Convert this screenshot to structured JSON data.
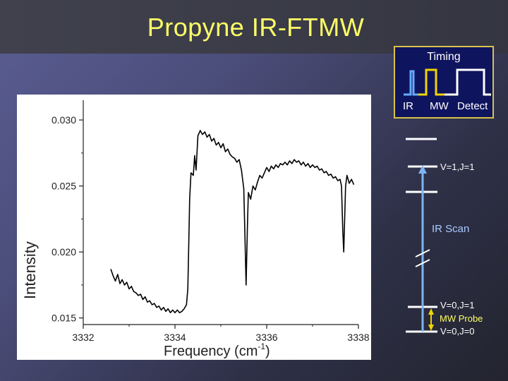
{
  "slide": {
    "title": "Propyne IR-FTMW"
  },
  "chart_data": {
    "type": "line",
    "title": "",
    "xlabel": "Frequency (cm-1)",
    "ylabel": "Intensity",
    "xlim": [
      3332,
      3338
    ],
    "ylim": [
      0.0145,
      0.0315
    ],
    "x_ticks": [
      "3332",
      "3334",
      "3336",
      "3338"
    ],
    "y_ticks": [
      "0.015",
      "0.020",
      "0.025",
      "0.030"
    ],
    "grid": false,
    "series": [
      {
        "color": "#000000",
        "points": [
          [
            3332.6,
            0.0187
          ],
          [
            3332.65,
            0.0182
          ],
          [
            3332.7,
            0.0178
          ],
          [
            3332.75,
            0.0183
          ],
          [
            3332.8,
            0.0176
          ],
          [
            3332.85,
            0.0179
          ],
          [
            3332.9,
            0.0175
          ],
          [
            3332.95,
            0.0177
          ],
          [
            3333.0,
            0.0172
          ],
          [
            3333.05,
            0.0174
          ],
          [
            3333.1,
            0.017
          ],
          [
            3333.15,
            0.0169
          ],
          [
            3333.2,
            0.0167
          ],
          [
            3333.25,
            0.0168
          ],
          [
            3333.3,
            0.0164
          ],
          [
            3333.35,
            0.0166
          ],
          [
            3333.4,
            0.0162
          ],
          [
            3333.45,
            0.0163
          ],
          [
            3333.5,
            0.016
          ],
          [
            3333.55,
            0.0161
          ],
          [
            3333.6,
            0.0158
          ],
          [
            3333.65,
            0.0159
          ],
          [
            3333.7,
            0.0156
          ],
          [
            3333.75,
            0.0158
          ],
          [
            3333.8,
            0.0155
          ],
          [
            3333.85,
            0.0157
          ],
          [
            3333.9,
            0.0154
          ],
          [
            3333.95,
            0.0156
          ],
          [
            3334.0,
            0.0154
          ],
          [
            3334.05,
            0.0156
          ],
          [
            3334.1,
            0.0154
          ],
          [
            3334.15,
            0.0155
          ],
          [
            3334.2,
            0.0157
          ],
          [
            3334.25,
            0.016
          ],
          [
            3334.28,
            0.0172
          ],
          [
            3334.3,
            0.0205
          ],
          [
            3334.32,
            0.024
          ],
          [
            3334.35,
            0.026
          ],
          [
            3334.4,
            0.0258
          ],
          [
            3334.43,
            0.0273
          ],
          [
            3334.46,
            0.0262
          ],
          [
            3334.5,
            0.0288
          ],
          [
            3334.55,
            0.0292
          ],
          [
            3334.6,
            0.0289
          ],
          [
            3334.65,
            0.0291
          ],
          [
            3334.7,
            0.0287
          ],
          [
            3334.75,
            0.0289
          ],
          [
            3334.8,
            0.0284
          ],
          [
            3334.85,
            0.0286
          ],
          [
            3334.9,
            0.0281
          ],
          [
            3334.95,
            0.0283
          ],
          [
            3335.0,
            0.0279
          ],
          [
            3335.05,
            0.0282
          ],
          [
            3335.1,
            0.0276
          ],
          [
            3335.15,
            0.0278
          ],
          [
            3335.2,
            0.0274
          ],
          [
            3335.25,
            0.0272
          ],
          [
            3335.3,
            0.0271
          ],
          [
            3335.35,
            0.0268
          ],
          [
            3335.4,
            0.027
          ],
          [
            3335.45,
            0.0262
          ],
          [
            3335.5,
            0.0248
          ],
          [
            3335.52,
            0.022
          ],
          [
            3335.55,
            0.0175
          ],
          [
            3335.58,
            0.022
          ],
          [
            3335.6,
            0.0245
          ],
          [
            3335.65,
            0.024
          ],
          [
            3335.7,
            0.025
          ],
          [
            3335.75,
            0.0247
          ],
          [
            3335.8,
            0.0253
          ],
          [
            3335.85,
            0.0258
          ],
          [
            3335.9,
            0.0256
          ],
          [
            3335.95,
            0.026
          ],
          [
            3336.0,
            0.0264
          ],
          [
            3336.05,
            0.0261
          ],
          [
            3336.1,
            0.0265
          ],
          [
            3336.15,
            0.0263
          ],
          [
            3336.2,
            0.0266
          ],
          [
            3336.25,
            0.0264
          ],
          [
            3336.3,
            0.0267
          ],
          [
            3336.35,
            0.0266
          ],
          [
            3336.4,
            0.0268
          ],
          [
            3336.45,
            0.0266
          ],
          [
            3336.5,
            0.0269
          ],
          [
            3336.55,
            0.0267
          ],
          [
            3336.6,
            0.027
          ],
          [
            3336.65,
            0.0268
          ],
          [
            3336.7,
            0.0269
          ],
          [
            3336.75,
            0.0266
          ],
          [
            3336.8,
            0.0268
          ],
          [
            3336.85,
            0.0265
          ],
          [
            3336.9,
            0.0267
          ],
          [
            3336.95,
            0.0264
          ],
          [
            3337.0,
            0.0266
          ],
          [
            3337.05,
            0.0264
          ],
          [
            3337.1,
            0.0265
          ],
          [
            3337.15,
            0.0262
          ],
          [
            3337.2,
            0.0263
          ],
          [
            3337.25,
            0.026
          ],
          [
            3337.3,
            0.0261
          ],
          [
            3337.35,
            0.0258
          ],
          [
            3337.4,
            0.0259
          ],
          [
            3337.45,
            0.0256
          ],
          [
            3337.5,
            0.0257
          ],
          [
            3337.55,
            0.0254
          ],
          [
            3337.6,
            0.0255
          ],
          [
            3337.63,
            0.025
          ],
          [
            3337.66,
            0.0215
          ],
          [
            3337.68,
            0.02
          ],
          [
            3337.7,
            0.0225
          ],
          [
            3337.72,
            0.025
          ],
          [
            3337.75,
            0.0258
          ],
          [
            3337.8,
            0.0252
          ],
          [
            3337.85,
            0.0255
          ],
          [
            3337.9,
            0.0251
          ]
        ]
      }
    ]
  },
  "timing": {
    "title": "Timing",
    "labels": {
      "ir": "IR",
      "mw": "MW",
      "detect": "Detect"
    },
    "colors": {
      "ir": "#66aaff",
      "mw": "#f2d400",
      "detect": "#ffffff",
      "border": "#d7c24a",
      "background": "#0f145e"
    }
  },
  "energy": {
    "upper_state": "V=1,J=1",
    "ir_scan": "IR Scan",
    "lower_state_upper": "V=0,J=1",
    "mw_probe": "MW Probe",
    "lower_state_ground": "V=0,J=0",
    "colors": {
      "ir_arrow": "#7fb4f0",
      "mw_arrow": "#f2d400",
      "ir_scan_text": "#a9c9ff",
      "mw_probe_text": "#ffff66"
    }
  }
}
